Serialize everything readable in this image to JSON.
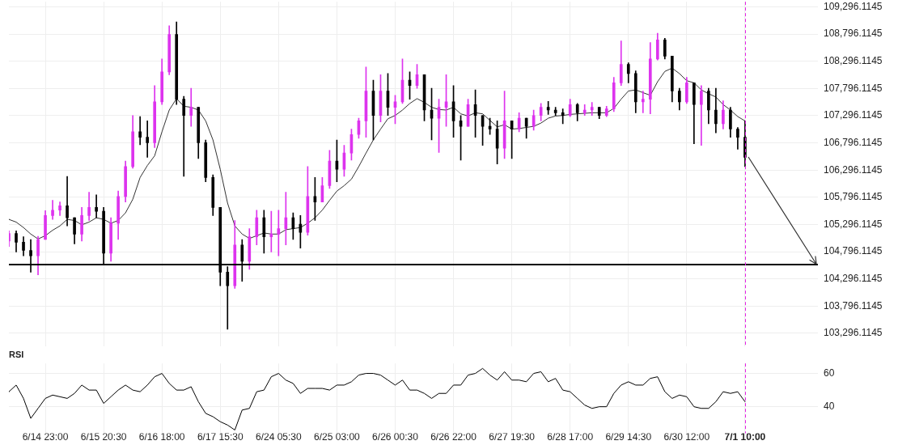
{
  "chart_data": [
    {
      "type": "candlestick",
      "categories": [
        null,
        null,
        null,
        null,
        null,
        "6/14 23:00",
        null,
        null,
        null,
        null,
        null,
        null,
        null,
        "6/15 20:30",
        null,
        null,
        null,
        null,
        null,
        null,
        null,
        "6/16 18:00",
        null,
        null,
        null,
        null,
        null,
        null,
        null,
        "6/17 15:30",
        null,
        null,
        null,
        null,
        null,
        null,
        null,
        "6/24 05:30",
        null,
        null,
        null,
        null,
        null,
        null,
        null,
        "6/25 03:00",
        null,
        null,
        null,
        null,
        null,
        null,
        null,
        "6/26 00:30",
        null,
        null,
        null,
        null,
        null,
        null,
        null,
        "6/26 22:00",
        null,
        null,
        null,
        null,
        null,
        null,
        null,
        "6/27 19:30",
        null,
        null,
        null,
        null,
        null,
        null,
        null,
        "6/28 17:00",
        null,
        null,
        null,
        null,
        null,
        null,
        null,
        "6/29 14:30",
        null,
        null,
        null,
        null,
        null,
        null,
        null,
        "6/30 12:00",
        null,
        null,
        null,
        null,
        null,
        null,
        null,
        "7/1 10:00",
        null,
        null,
        null,
        null,
        null,
        null,
        null,
        null,
        null,
        null
      ],
      "ohlc": [
        [
          104990,
          105180,
          104890,
          105130
        ],
        [
          105130,
          105180,
          104790,
          104970
        ],
        [
          104970,
          105070,
          104720,
          104820
        ],
        [
          104820,
          105020,
          104420,
          104720
        ],
        [
          104720,
          105080,
          104370,
          105020
        ],
        [
          105020,
          105550,
          105020,
          105460
        ],
        [
          105460,
          105740,
          105390,
          105560
        ],
        [
          105560,
          105710,
          105460,
          105640
        ],
        [
          105640,
          106180,
          105270,
          105420
        ],
        [
          105420,
          105420,
          104940,
          105120
        ],
        [
          105120,
          105610,
          104990,
          105460
        ],
        [
          105460,
          105890,
          105370,
          105610
        ],
        [
          105610,
          105840,
          105420,
          105540
        ],
        [
          105540,
          105610,
          104570,
          104770
        ],
        [
          104770,
          105420,
          104620,
          105320
        ],
        [
          105320,
          105910,
          105020,
          105810
        ],
        [
          105810,
          106460,
          105710,
          106360
        ],
        [
          106360,
          107300,
          106330,
          107000
        ],
        [
          107000,
          107280,
          106760,
          106900
        ],
        [
          106900,
          107200,
          106530,
          106800
        ],
        [
          106800,
          107850,
          106710,
          107550
        ],
        [
          107550,
          108340,
          107500,
          108100
        ],
        [
          108100,
          108950,
          108050,
          108790
        ],
        [
          108790,
          109020,
          107500,
          107600
        ],
        [
          107600,
          107650,
          106180,
          107300
        ],
        [
          107300,
          107800,
          107100,
          107450
        ],
        [
          107450,
          107450,
          106510,
          106800
        ],
        [
          106800,
          106850,
          106080,
          106160
        ],
        [
          106160,
          106210,
          105460,
          105610
        ],
        [
          105610,
          105610,
          104170,
          104420
        ],
        [
          104420,
          104520,
          103370,
          104170
        ],
        [
          104170,
          105370,
          104120,
          104920
        ],
        [
          104920,
          105020,
          104250,
          104620
        ],
        [
          104620,
          105220,
          104470,
          105070
        ],
        [
          105070,
          105560,
          104920,
          105420
        ],
        [
          105420,
          105560,
          104770,
          105070
        ],
        [
          105070,
          105540,
          104790,
          105120
        ],
        [
          105120,
          105560,
          104720,
          105220
        ],
        [
          105220,
          105890,
          104920,
          105420
        ],
        [
          105420,
          105510,
          105020,
          105220
        ],
        [
          105300,
          105460,
          104860,
          105150
        ],
        [
          105150,
          106360,
          105100,
          105810
        ],
        [
          105810,
          106160,
          105370,
          105710
        ],
        [
          105710,
          106160,
          105710,
          106010
        ],
        [
          106010,
          106660,
          105960,
          106460
        ],
        [
          106460,
          106850,
          106080,
          106310
        ],
        [
          106310,
          106750,
          106180,
          106610
        ],
        [
          106610,
          107050,
          106480,
          106950
        ],
        [
          106950,
          107250,
          106880,
          107200
        ],
        [
          107200,
          108190,
          106900,
          107750
        ],
        [
          107750,
          107950,
          106850,
          107300
        ],
        [
          107300,
          108050,
          107180,
          107750
        ],
        [
          107750,
          108070,
          107300,
          107450
        ],
        [
          107450,
          107670,
          107150,
          107550
        ],
        [
          107550,
          108340,
          107520,
          107950
        ],
        [
          107950,
          108100,
          107600,
          107850
        ],
        [
          107850,
          108240,
          107800,
          108050
        ],
        [
          108050,
          108050,
          107200,
          107400
        ],
        [
          107400,
          107800,
          106850,
          107250
        ],
        [
          107250,
          107600,
          106620,
          107450
        ],
        [
          107450,
          108050,
          107100,
          107550
        ],
        [
          107550,
          107850,
          106900,
          107200
        ],
        [
          107200,
          107300,
          106480,
          107100
        ],
        [
          107100,
          107600,
          107100,
          107500
        ],
        [
          107500,
          107770,
          106900,
          107300
        ],
        [
          107300,
          107300,
          106750,
          107100
        ],
        [
          107100,
          107250,
          106950,
          107050
        ],
        [
          107050,
          107200,
          106410,
          106700
        ],
        [
          106700,
          107750,
          106510,
          107200
        ],
        [
          107200,
          107200,
          106510,
          107050
        ],
        [
          107050,
          107350,
          107000,
          107250
        ],
        [
          107250,
          107250,
          106880,
          107100
        ],
        [
          107100,
          107400,
          107030,
          107300
        ],
        [
          107300,
          107520,
          107200,
          107450
        ],
        [
          107450,
          107560,
          107320,
          107400
        ],
        [
          107400,
          107450,
          107300,
          107350
        ],
        [
          107350,
          107420,
          107150,
          107300
        ],
        [
          107300,
          107600,
          107280,
          107500
        ],
        [
          107500,
          107520,
          107200,
          107350
        ],
        [
          107350,
          107500,
          107300,
          107400
        ],
        [
          107400,
          107540,
          107300,
          107450
        ],
        [
          107450,
          107450,
          107240,
          107300
        ],
        [
          107300,
          107470,
          107280,
          107420
        ],
        [
          107420,
          108000,
          107370,
          107900
        ],
        [
          107900,
          108670,
          107850,
          108240
        ],
        [
          108240,
          108270,
          107900,
          108070
        ],
        [
          108070,
          108120,
          107350,
          107550
        ],
        [
          107550,
          107750,
          107350,
          107600
        ],
        [
          107600,
          108640,
          107330,
          108340
        ],
        [
          108340,
          108810,
          108320,
          108690
        ],
        [
          108690,
          108720,
          108340,
          108390
        ],
        [
          108390,
          108390,
          107550,
          107750
        ],
        [
          107750,
          107800,
          107400,
          107550
        ],
        [
          107550,
          108000,
          107520,
          107900
        ],
        [
          107900,
          107900,
          106780,
          107500
        ],
        [
          107500,
          107850,
          106750,
          107750
        ],
        [
          107750,
          107800,
          107150,
          107400
        ],
        [
          107400,
          107800,
          106980,
          107150
        ],
        [
          107150,
          107570,
          107050,
          107400
        ],
        [
          107400,
          107450,
          106900,
          107050
        ],
        [
          107050,
          107080,
          106680,
          106900
        ],
        [
          106900,
          107200,
          106360,
          106530
        ],
        null,
        null,
        null,
        null,
        null,
        null,
        null,
        null,
        null,
        null
      ],
      "colors": [
        "#dd33ee",
        "#000000",
        "#000000",
        "#000000",
        "#dd33ee",
        "#dd33ee",
        "#dd33ee",
        "#dd33ee",
        "#000000",
        "#000000",
        "#dd33ee",
        "#dd33ee",
        "#000000",
        "#000000",
        "#dd33ee",
        "#dd33ee",
        "#dd33ee",
        "#dd33ee",
        "#000000",
        "#000000",
        "#dd33ee",
        "#dd33ee",
        "#dd33ee",
        "#000000",
        "#000000",
        "#dd33ee",
        "#000000",
        "#000000",
        "#000000",
        "#000000",
        "#000000",
        "#dd33ee",
        "#000000",
        "#dd33ee",
        "#dd33ee",
        "#000000",
        "#dd33ee",
        "#dd33ee",
        "#dd33ee",
        "#000000",
        "#000000",
        "#dd33ee",
        "#000000",
        "#dd33ee",
        "#dd33ee",
        "#000000",
        "#dd33ee",
        "#dd33ee",
        "#dd33ee",
        "#dd33ee",
        "#000000",
        "#dd33ee",
        "#000000",
        "#dd33ee",
        "#dd33ee",
        "#000000",
        "#dd33ee",
        "#000000",
        "#000000",
        "#dd33ee",
        "#dd33ee",
        "#000000",
        "#000000",
        "#dd33ee",
        "#000000",
        "#000000",
        "#000000",
        "#000000",
        "#dd33ee",
        "#000000",
        "#dd33ee",
        "#000000",
        "#dd33ee",
        "#dd33ee",
        "#000000",
        "#000000",
        "#000000",
        "#dd33ee",
        "#000000",
        "#dd33ee",
        "#dd33ee",
        "#000000",
        "#dd33ee",
        "#dd33ee",
        "#dd33ee",
        "#000000",
        "#000000",
        "#dd33ee",
        "#dd33ee",
        "#dd33ee",
        "#000000",
        "#000000",
        "#000000",
        "#dd33ee",
        "#000000",
        "#dd33ee",
        "#000000",
        "#000000",
        "#dd33ee",
        "#000000",
        "#000000",
        "#000000",
        null,
        null,
        null,
        null,
        null,
        null,
        null,
        null,
        null,
        null
      ],
      "series": [
        {
          "type": "line",
          "color": "#333333",
          "values": [
            105390,
            105340,
            105240,
            105120,
            105030,
            105090,
            105190,
            105270,
            105390,
            105370,
            105290,
            105340,
            105420,
            105390,
            105320,
            105370,
            105510,
            105760,
            106160,
            106380,
            106560,
            107000,
            107400,
            107610,
            107470,
            107450,
            107400,
            107200,
            106850,
            106310,
            105690,
            105270,
            105120,
            105040,
            105090,
            105140,
            105120,
            105120,
            105200,
            105220,
            105240,
            105320,
            105420,
            105560,
            105740,
            105910,
            106010,
            106130,
            106360,
            106610,
            106850,
            107050,
            107240,
            107300,
            107400,
            107520,
            107610,
            107540,
            107450,
            107410,
            107400,
            107450,
            107330,
            107290,
            107350,
            107330,
            107210,
            107090,
            107130,
            107050,
            107060,
            107080,
            107100,
            107160,
            107250,
            107290,
            107300,
            107320,
            107330,
            107340,
            107350,
            107350,
            107350,
            107430,
            107600,
            107750,
            107770,
            107720,
            107670,
            107920,
            108110,
            108170,
            108070,
            107940,
            107900,
            107770,
            107700,
            107640,
            107500,
            107400,
            107280,
            107200,
            null,
            null,
            null,
            null,
            null,
            null,
            null,
            null,
            null,
            null
          ]
        }
      ],
      "ylim": [
        103060,
        109390
      ],
      "yticks": [
        {
          "value": 103296.1145,
          "label": "103,296.1145"
        },
        {
          "value": 103796.1145,
          "label": "103,796.1145"
        },
        {
          "value": 104296.1145,
          "label": "104,296.1145"
        },
        {
          "value": 104796.1145,
          "label": "104,796.1145"
        },
        {
          "value": 105296.1145,
          "label": "105,296.1145"
        },
        {
          "value": 105796.1145,
          "label": "105,796.1145"
        },
        {
          "value": 106296.1145,
          "label": "106,296.1145"
        },
        {
          "value": 106796.1145,
          "label": "106,796.1145"
        },
        {
          "value": 107296.1145,
          "label": "107,296.1145"
        },
        {
          "value": 107796.1145,
          "label": "107,796.1145"
        },
        {
          "value": 108296.1145,
          "label": "108,296.1145"
        },
        {
          "value": 108796.1145,
          "label": "108,796.1145"
        },
        {
          "value": 109296.1145,
          "label": "109,296.1145"
        }
      ],
      "ref_lines": [
        {
          "axis": "y",
          "value": 104560,
          "color": "#000000"
        },
        {
          "axis": "x",
          "value": "7/1 10:00",
          "color": "#e620e6",
          "line_style": "dashed"
        }
      ],
      "grid": true,
      "tick_labels": "y"
    },
    {
      "type": "line",
      "title": "RSI",
      "categories": [
        null,
        null,
        null,
        null,
        null,
        "6/14 23:00",
        null,
        null,
        null,
        null,
        null,
        null,
        null,
        "6/15 20:30",
        null,
        null,
        null,
        null,
        null,
        null,
        null,
        "6/16 18:00",
        null,
        null,
        null,
        null,
        null,
        null,
        null,
        "6/17 15:30",
        null,
        null,
        null,
        null,
        null,
        null,
        null,
        "6/24 05:30",
        null,
        null,
        null,
        null,
        null,
        null,
        null,
        "6/25 03:00",
        null,
        null,
        null,
        null,
        null,
        null,
        null,
        "6/26 00:30",
        null,
        null,
        null,
        null,
        null,
        null,
        null,
        "6/26 22:00",
        null,
        null,
        null,
        null,
        null,
        null,
        null,
        "6/27 19:30",
        null,
        null,
        null,
        null,
        null,
        null,
        null,
        "6/28 17:00",
        null,
        null,
        null,
        null,
        null,
        null,
        null,
        "6/29 14:30",
        null,
        null,
        null,
        null,
        null,
        null,
        null,
        "6/30 12:00",
        null,
        null,
        null,
        null,
        null,
        null,
        null,
        "7/1 10:00",
        null,
        null,
        null,
        null,
        null,
        null,
        null,
        null,
        null,
        null
      ],
      "values": [
        49,
        53,
        45,
        33,
        39,
        45,
        47,
        46,
        45,
        48,
        53,
        50,
        50,
        42,
        46,
        50,
        53,
        50,
        49,
        53,
        58,
        60,
        54,
        50,
        50,
        52,
        43,
        36,
        34,
        31,
        29,
        26,
        38,
        39,
        49,
        50,
        58,
        60,
        56,
        54,
        48,
        51,
        51,
        51,
        50,
        53,
        53,
        55,
        59,
        60,
        60,
        59,
        56,
        53,
        56,
        50,
        50,
        48,
        45,
        48,
        48,
        53,
        53,
        59,
        60,
        63,
        59,
        56,
        61,
        56,
        56,
        55,
        60,
        61,
        55,
        57,
        50,
        49,
        45,
        41,
        39,
        40,
        40,
        48,
        53,
        55,
        53,
        53,
        57,
        58,
        49,
        45,
        47,
        46,
        40,
        39,
        39,
        43,
        49,
        48,
        49,
        43,
        null,
        null,
        null,
        null,
        null,
        null,
        null,
        null,
        null,
        null
      ],
      "color": "#000000",
      "ylim": [
        24,
        66
      ],
      "yticks": [
        40,
        60
      ],
      "ref_lines": [
        {
          "axis": "x",
          "value": "7/1 10:00",
          "color": "#e620e6",
          "line_style": "dashed"
        }
      ],
      "grid": true
    }
  ]
}
